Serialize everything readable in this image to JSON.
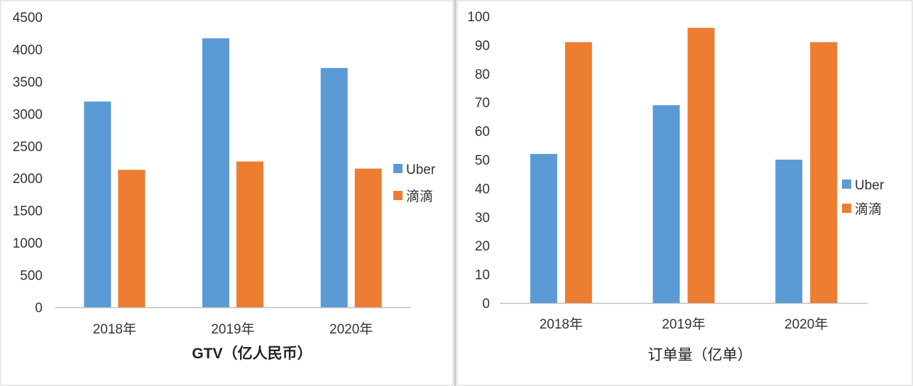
{
  "colors": {
    "uber": "#5B9BD5",
    "didi": "#ED7D31",
    "axis": "#BFBFBF",
    "divider": "#C8C8C8"
  },
  "chart_data": [
    {
      "type": "bar",
      "categories": [
        "2018年",
        "2019年",
        "2020年"
      ],
      "series": [
        {
          "name": "Uber",
          "values": [
            3190,
            4170,
            3710
          ]
        },
        {
          "name": "滴滴",
          "values": [
            2130,
            2260,
            2150
          ]
        }
      ],
      "xlabel": "GTV（亿人民币）",
      "ylabel": "",
      "ylim": [
        0,
        4500
      ],
      "yticks": [
        0,
        500,
        1000,
        1500,
        2000,
        2500,
        3000,
        3500,
        4000,
        4500
      ],
      "grid": false,
      "legend_position": "right"
    },
    {
      "type": "bar",
      "categories": [
        "2018年",
        "2019年",
        "2020年"
      ],
      "series": [
        {
          "name": "Uber",
          "values": [
            52,
            69,
            50
          ]
        },
        {
          "name": "滴滴",
          "values": [
            91,
            96,
            91
          ]
        }
      ],
      "xlabel": "订单量（亿单）",
      "ylabel": "",
      "ylim": [
        0,
        100
      ],
      "yticks": [
        0,
        10,
        20,
        30,
        40,
        50,
        60,
        70,
        80,
        90,
        100
      ],
      "grid": false,
      "legend_position": "right"
    }
  ]
}
